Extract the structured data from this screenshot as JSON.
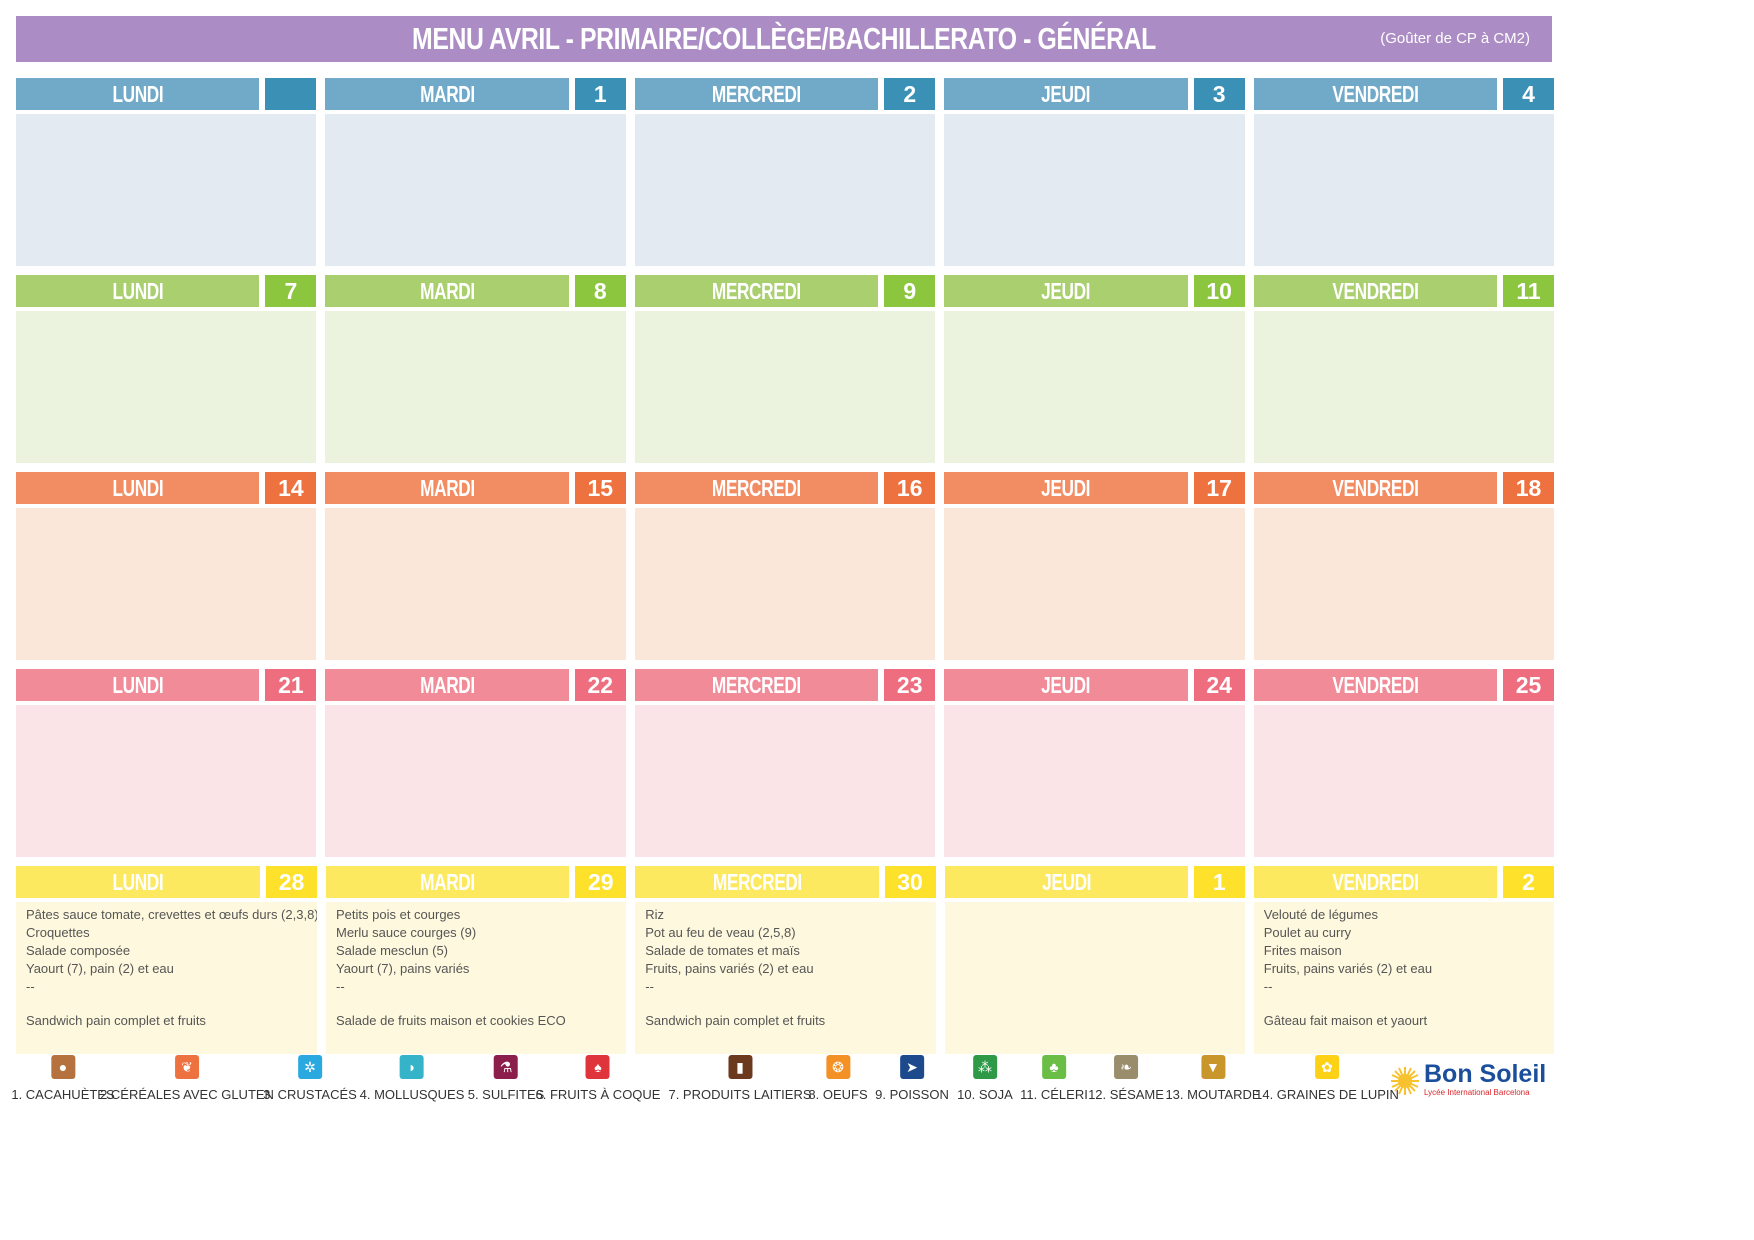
{
  "header": {
    "title": "MENU AVRIL - PRIMAIRE/COLLÈGE/BACHILLERATO - GÉNÉRAL",
    "subtitle": "(Goûter de CP à CM2)",
    "color": "#ab8cc4"
  },
  "weeks": [
    {
      "head_color": "#71a9c8",
      "num_color": "#3a90b5",
      "body_color": "#e3eaf2",
      "days": [
        {
          "name": "LUNDI",
          "num": "",
          "lines": [],
          "gouter": ""
        },
        {
          "name": "MARDI",
          "num": "1",
          "lines": [],
          "gouter": ""
        },
        {
          "name": "MERCREDI",
          "num": "2",
          "lines": [],
          "gouter": ""
        },
        {
          "name": "JEUDI",
          "num": "3",
          "lines": [],
          "gouter": ""
        },
        {
          "name": "VENDREDI",
          "num": "4",
          "lines": [],
          "gouter": ""
        }
      ]
    },
    {
      "head_color": "#a9cf6e",
      "num_color": "#8cc63f",
      "body_color": "#ebf2de",
      "days": [
        {
          "name": "LUNDI",
          "num": "7",
          "lines": [],
          "gouter": ""
        },
        {
          "name": "MARDI",
          "num": "8",
          "lines": [],
          "gouter": ""
        },
        {
          "name": "MERCREDI",
          "num": "9",
          "lines": [],
          "gouter": ""
        },
        {
          "name": "JEUDI",
          "num": "10",
          "lines": [],
          "gouter": ""
        },
        {
          "name": "VENDREDI",
          "num": "11",
          "lines": [],
          "gouter": ""
        }
      ]
    },
    {
      "head_color": "#f28c62",
      "num_color": "#ee7240",
      "body_color": "#fbe6da",
      "days": [
        {
          "name": "LUNDI",
          "num": "14",
          "lines": [],
          "gouter": ""
        },
        {
          "name": "MARDI",
          "num": "15",
          "lines": [],
          "gouter": ""
        },
        {
          "name": "MERCREDI",
          "num": "16",
          "lines": [],
          "gouter": ""
        },
        {
          "name": "JEUDI",
          "num": "17",
          "lines": [],
          "gouter": ""
        },
        {
          "name": "VENDREDI",
          "num": "18",
          "lines": [],
          "gouter": ""
        }
      ]
    },
    {
      "head_color": "#f28b98",
      "num_color": "#ee6e80",
      "body_color": "#fbe4e7",
      "days": [
        {
          "name": "LUNDI",
          "num": "21",
          "lines": [],
          "gouter": ""
        },
        {
          "name": "MARDI",
          "num": "22",
          "lines": [],
          "gouter": ""
        },
        {
          "name": "MERCREDI",
          "num": "23",
          "lines": [],
          "gouter": ""
        },
        {
          "name": "JEUDI",
          "num": "24",
          "lines": [],
          "gouter": ""
        },
        {
          "name": "VENDREDI",
          "num": "25",
          "lines": [],
          "gouter": ""
        }
      ]
    },
    {
      "head_color": "#fde95f",
      "num_color": "#fde12a",
      "body_color": "#fef9de",
      "days": [
        {
          "name": "LUNDI",
          "num": "28",
          "lines": [
            "Pâtes sauce tomate, crevettes et œufs durs (2,3,8)",
            "Croquettes",
            "Salade composée",
            "Yaourt (7), pain (2) et eau",
            "--"
          ],
          "gouter": "Sandwich pain complet et fruits"
        },
        {
          "name": "MARDI",
          "num": "29",
          "lines": [
            "Petits pois et courges",
            "Merlu sauce courges (9)",
            "Salade mesclun (5)",
            "Yaourt (7), pains variés",
            "--"
          ],
          "gouter": "Salade de fruits maison et cookies ECO"
        },
        {
          "name": "MERCREDI",
          "num": "30",
          "lines": [
            "Riz",
            "Pot au feu de veau (2,5,8)",
            "Salade de tomates et maïs",
            "Fruits, pains variés (2) et eau",
            "--"
          ],
          "gouter": "Sandwich pain complet et fruits"
        },
        {
          "name": "JEUDI",
          "num": "1",
          "lines": [],
          "gouter": ""
        },
        {
          "name": "VENDREDI",
          "num": "2",
          "lines": [
            "Velouté de légumes",
            "Poulet au curry",
            "Frites maison",
            "Fruits, pains variés (2) et eau",
            "--"
          ],
          "gouter": "Gâteau fait maison et yaourt"
        }
      ]
    }
  ],
  "legend": [
    {
      "label": "1. CACAHUÈTES",
      "icon": "peanut-icon",
      "color": "#b5723f",
      "glyph": "●"
    },
    {
      "label": "2.CÉRÉALES AVEC GLUTEN",
      "icon": "wheat-icon",
      "color": "#ee7240",
      "glyph": "❦"
    },
    {
      "label": "3. CRUSTACÉS",
      "icon": "crab-icon",
      "color": "#2aa9e0",
      "glyph": "✲"
    },
    {
      "label": "4. MOLLUSQUES",
      "icon": "shell-icon",
      "color": "#35b4c9",
      "glyph": "◗"
    },
    {
      "label": "5. SULFITES",
      "icon": "sulphites-icon",
      "color": "#8b1e4b",
      "glyph": "⚗"
    },
    {
      "label": "6. FRUITS À COQUE",
      "icon": "nut-icon",
      "color": "#e0343c",
      "glyph": "♠"
    },
    {
      "label": "7. PRODUITS LAITIERS",
      "icon": "milk-icon",
      "color": "#6b3a1e",
      "glyph": "▮"
    },
    {
      "label": "8. OEUFS",
      "icon": "eggs-icon",
      "color": "#f39124",
      "glyph": "❂"
    },
    {
      "label": "9. POISSON",
      "icon": "fish-icon",
      "color": "#1d4a8c",
      "glyph": "➤"
    },
    {
      "label": "10. SOJA",
      "icon": "soy-icon",
      "color": "#2e9a48",
      "glyph": "⁂"
    },
    {
      "label": "11. CÉLERI",
      "icon": "celery-icon",
      "color": "#6abd45",
      "glyph": "♣"
    },
    {
      "label": "12. SÉSAME",
      "icon": "sesame-icon",
      "color": "#9a8d6b",
      "glyph": "❧"
    },
    {
      "label": "13. MOUTARDE",
      "icon": "mustard-icon",
      "color": "#c9962b",
      "glyph": "▼"
    },
    {
      "label": "14. GRAINES DE LUPIN",
      "icon": "lupin-icon",
      "color": "#fcd116",
      "glyph": "✿"
    }
  ],
  "logo": {
    "brand": "Bon Soleil",
    "tagline": "Lycée International Barcelona",
    "icon": "sun-icon"
  }
}
